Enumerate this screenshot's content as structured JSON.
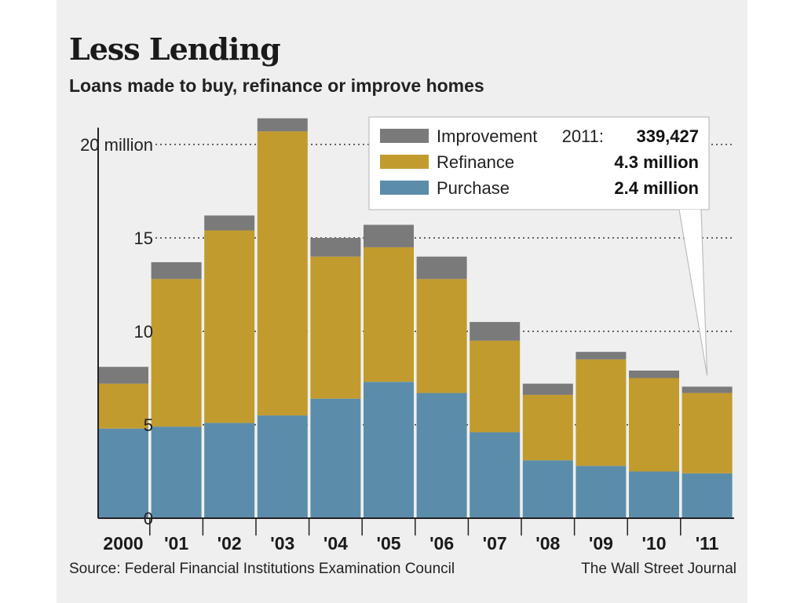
{
  "header": {
    "title": "Less Lending",
    "subtitle": "Loans made to buy, refinance or improve homes"
  },
  "footer": {
    "source": "Source: Federal Financial Institutions Examination Council",
    "credit": "The Wall Street Journal"
  },
  "legend": {
    "items": [
      {
        "name": "Improvement",
        "color": "#7a7a7a",
        "value_prefix": "2011:",
        "value": "339,427"
      },
      {
        "name": "Refinance",
        "color": "#c19b2e",
        "value_prefix": "",
        "value": "4.3 million"
      },
      {
        "name": "Purchase",
        "color": "#5b8dab",
        "value_prefix": "",
        "value": "2.4 million"
      }
    ]
  },
  "chart_data": {
    "type": "bar",
    "stacked": true,
    "categories": [
      "2000",
      "'01",
      "'02",
      "'03",
      "'04",
      "'05",
      "'06",
      "'07",
      "'08",
      "'09",
      "'10",
      "'11"
    ],
    "series": [
      {
        "name": "Purchase",
        "color": "#5b8dab",
        "values": [
          4.8,
          4.9,
          5.1,
          5.5,
          6.4,
          7.3,
          6.7,
          4.6,
          3.1,
          2.8,
          2.5,
          2.4
        ]
      },
      {
        "name": "Refinance",
        "color": "#c19b2e",
        "values": [
          2.4,
          7.9,
          10.3,
          15.2,
          7.6,
          7.2,
          6.1,
          4.9,
          3.5,
          5.7,
          5.0,
          4.3
        ]
      },
      {
        "name": "Improvement",
        "color": "#7a7a7a",
        "values": [
          0.9,
          0.9,
          0.8,
          0.7,
          1.0,
          1.2,
          1.2,
          1.0,
          0.6,
          0.4,
          0.4,
          0.34
        ]
      }
    ],
    "y_ticks": [
      0,
      5,
      10,
      15,
      20
    ],
    "y_tick_labels": [
      "0",
      "5",
      "10",
      "15",
      "20 million"
    ],
    "ylim": [
      0,
      21.4
    ],
    "grid": true,
    "legend_position": "top-right",
    "colors": {
      "axis": "#222222",
      "grid": "#333333"
    }
  }
}
